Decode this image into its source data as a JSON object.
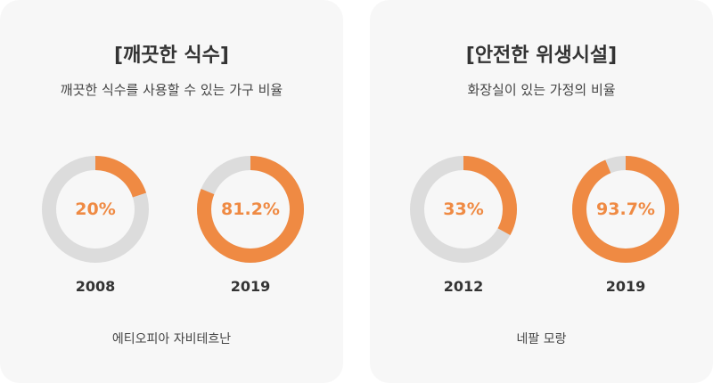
{
  "colors": {
    "filled": "#ef8a43",
    "empty": "#dcdcdc"
  },
  "chart_data": [
    {
      "type": "pie",
      "title": "[깨끗한 식수]",
      "subtitle": "깨끗한 식수를 사용할 수 있는 가구 비율",
      "footer": "에티오피아 자비테흐난",
      "items": [
        {
          "category": "2008",
          "value": 20,
          "label": "20%"
        },
        {
          "category": "2019",
          "value": 81.2,
          "label": "81.2%"
        }
      ]
    },
    {
      "type": "pie",
      "title": "[안전한 위생시설]",
      "subtitle": "화장실이 있는 가정의 비율",
      "footer": "네팔 모랑",
      "items": [
        {
          "category": "2012",
          "value": 33,
          "label": "33%"
        },
        {
          "category": "2019",
          "value": 93.7,
          "label": "93.7%"
        }
      ]
    }
  ]
}
